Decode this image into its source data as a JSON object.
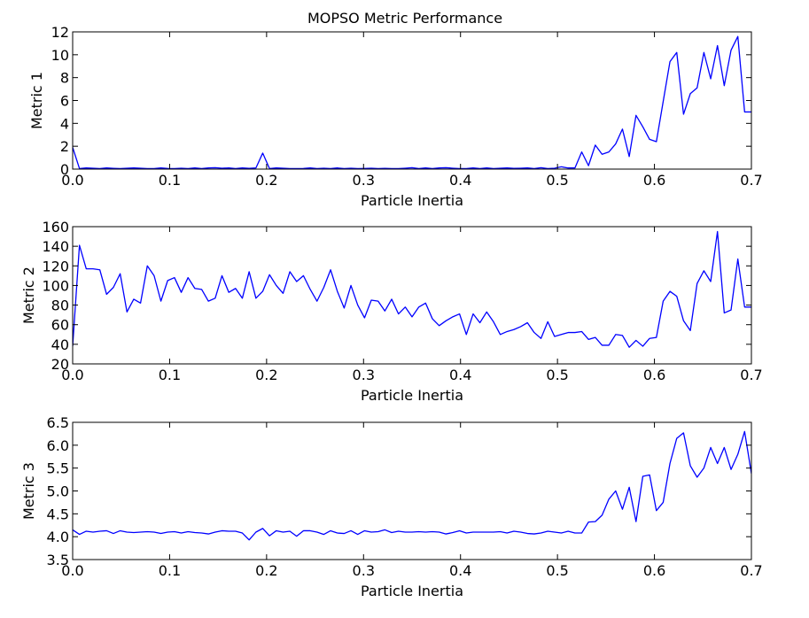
{
  "figure": {
    "title": "MOPSO Metric Performance"
  },
  "chart_data": [
    {
      "type": "line",
      "title": "MOPSO Metric Performance",
      "xlabel": "Particle Inertia",
      "ylabel": "Metric 1",
      "xlim": [
        0.0,
        0.7
      ],
      "ylim": [
        0,
        12
      ],
      "xticks": [
        "0.0",
        "0.1",
        "0.2",
        "0.3",
        "0.4",
        "0.5",
        "0.6",
        "0.7"
      ],
      "yticks": [
        "0",
        "2",
        "4",
        "6",
        "8",
        "10",
        "12"
      ],
      "grid": false,
      "line_color": "#0000ff",
      "x": [
        0.0,
        0.007,
        0.014,
        0.021,
        0.028,
        0.035,
        0.042,
        0.049,
        0.056,
        0.063,
        0.07,
        0.077,
        0.084,
        0.091,
        0.098,
        0.105,
        0.112,
        0.119,
        0.126,
        0.133,
        0.14,
        0.147,
        0.154,
        0.161,
        0.168,
        0.175,
        0.182,
        0.189,
        0.196,
        0.203,
        0.21,
        0.217,
        0.224,
        0.231,
        0.238,
        0.245,
        0.252,
        0.259,
        0.266,
        0.273,
        0.28,
        0.287,
        0.294,
        0.301,
        0.308,
        0.315,
        0.322,
        0.329,
        0.336,
        0.343,
        0.35,
        0.357,
        0.364,
        0.371,
        0.378,
        0.385,
        0.392,
        0.399,
        0.406,
        0.413,
        0.42,
        0.427,
        0.434,
        0.441,
        0.448,
        0.455,
        0.462,
        0.469,
        0.476,
        0.483,
        0.49,
        0.497,
        0.504,
        0.511,
        0.518,
        0.525,
        0.532,
        0.539,
        0.546,
        0.553,
        0.56,
        0.567,
        0.574,
        0.581,
        0.588,
        0.595,
        0.602,
        0.609,
        0.616,
        0.623,
        0.63,
        0.637,
        0.644,
        0.651,
        0.658,
        0.665,
        0.672,
        0.679,
        0.686,
        0.693,
        0.7
      ],
      "y": [
        1.9,
        0.05,
        0.1,
        0.08,
        0.05,
        0.1,
        0.07,
        0.05,
        0.08,
        0.1,
        0.08,
        0.05,
        0.05,
        0.1,
        0.06,
        0.05,
        0.08,
        0.05,
        0.1,
        0.05,
        0.1,
        0.12,
        0.08,
        0.1,
        0.05,
        0.1,
        0.07,
        0.1,
        1.4,
        0.05,
        0.1,
        0.08,
        0.05,
        0.05,
        0.06,
        0.1,
        0.05,
        0.08,
        0.05,
        0.1,
        0.05,
        0.08,
        0.05,
        0.06,
        0.08,
        0.05,
        0.07,
        0.05,
        0.05,
        0.08,
        0.12,
        0.05,
        0.1,
        0.05,
        0.1,
        0.12,
        0.08,
        0.05,
        0.05,
        0.1,
        0.05,
        0.1,
        0.05,
        0.08,
        0.1,
        0.07,
        0.08,
        0.1,
        0.05,
        0.12,
        0.05,
        0.08,
        0.2,
        0.1,
        0.1,
        1.5,
        0.3,
        2.1,
        1.3,
        1.5,
        2.2,
        3.5,
        1.1,
        4.7,
        3.7,
        2.6,
        2.4,
        5.9,
        9.4,
        10.2,
        4.8,
        6.6,
        7.1,
        10.2,
        7.9,
        10.8,
        7.3,
        10.4,
        11.6,
        5.0,
        5.0
      ]
    },
    {
      "type": "line",
      "xlabel": "Particle Inertia",
      "ylabel": "Metric 2",
      "xlim": [
        0.0,
        0.7
      ],
      "ylim": [
        20,
        160
      ],
      "xticks": [
        "0.0",
        "0.1",
        "0.2",
        "0.3",
        "0.4",
        "0.5",
        "0.6",
        "0.7"
      ],
      "yticks": [
        "20",
        "40",
        "60",
        "80",
        "100",
        "120",
        "140",
        "160"
      ],
      "grid": false,
      "line_color": "#0000ff",
      "x": [
        0.0,
        0.007,
        0.014,
        0.021,
        0.028,
        0.035,
        0.042,
        0.049,
        0.056,
        0.063,
        0.07,
        0.077,
        0.084,
        0.091,
        0.098,
        0.105,
        0.112,
        0.119,
        0.126,
        0.133,
        0.14,
        0.147,
        0.154,
        0.161,
        0.168,
        0.175,
        0.182,
        0.189,
        0.196,
        0.203,
        0.21,
        0.217,
        0.224,
        0.231,
        0.238,
        0.245,
        0.252,
        0.259,
        0.266,
        0.273,
        0.28,
        0.287,
        0.294,
        0.301,
        0.308,
        0.315,
        0.322,
        0.329,
        0.336,
        0.343,
        0.35,
        0.357,
        0.364,
        0.371,
        0.378,
        0.385,
        0.392,
        0.399,
        0.406,
        0.413,
        0.42,
        0.427,
        0.434,
        0.441,
        0.448,
        0.455,
        0.462,
        0.469,
        0.476,
        0.483,
        0.49,
        0.497,
        0.504,
        0.511,
        0.518,
        0.525,
        0.532,
        0.539,
        0.546,
        0.553,
        0.56,
        0.567,
        0.574,
        0.581,
        0.588,
        0.595,
        0.602,
        0.609,
        0.616,
        0.623,
        0.63,
        0.637,
        0.644,
        0.651,
        0.658,
        0.665,
        0.672,
        0.679,
        0.686,
        0.693,
        0.7
      ],
      "y": [
        38,
        141,
        117,
        117,
        116,
        91,
        98,
        112,
        73,
        86,
        82,
        120,
        110,
        84,
        105,
        108,
        93,
        108,
        97,
        96,
        84,
        87,
        110,
        93,
        97,
        87,
        114,
        87,
        94,
        111,
        100,
        92,
        114,
        104,
        110,
        96,
        84,
        98,
        116,
        94,
        77,
        100,
        80,
        67,
        85,
        84,
        74,
        86,
        71,
        78,
        68,
        78,
        82,
        66,
        59,
        64,
        68,
        71,
        50,
        71,
        62,
        73,
        63,
        50,
        53,
        55,
        58,
        62,
        52,
        46,
        63,
        48,
        50,
        52,
        52,
        53,
        45,
        47,
        39,
        39,
        50,
        49,
        37,
        44,
        38,
        46,
        47,
        84,
        94,
        89,
        64,
        54,
        102,
        115,
        104,
        155,
        72,
        75,
        127,
        78,
        78
      ]
    },
    {
      "type": "line",
      "xlabel": "Particle Inertia",
      "ylabel": "Metric 3",
      "xlim": [
        0.0,
        0.7
      ],
      "ylim": [
        3.5,
        6.5
      ],
      "xticks": [
        "0.0",
        "0.1",
        "0.2",
        "0.3",
        "0.4",
        "0.5",
        "0.6",
        "0.7"
      ],
      "yticks": [
        "3.5",
        "4.0",
        "4.5",
        "5.0",
        "5.5",
        "6.0",
        "6.5"
      ],
      "grid": false,
      "line_color": "#0000ff",
      "x": [
        0.0,
        0.007,
        0.014,
        0.021,
        0.028,
        0.035,
        0.042,
        0.049,
        0.056,
        0.063,
        0.07,
        0.077,
        0.084,
        0.091,
        0.098,
        0.105,
        0.112,
        0.119,
        0.126,
        0.133,
        0.14,
        0.147,
        0.154,
        0.161,
        0.168,
        0.175,
        0.182,
        0.189,
        0.196,
        0.203,
        0.21,
        0.217,
        0.224,
        0.231,
        0.238,
        0.245,
        0.252,
        0.259,
        0.266,
        0.273,
        0.28,
        0.287,
        0.294,
        0.301,
        0.308,
        0.315,
        0.322,
        0.329,
        0.336,
        0.343,
        0.35,
        0.357,
        0.364,
        0.371,
        0.378,
        0.385,
        0.392,
        0.399,
        0.406,
        0.413,
        0.42,
        0.427,
        0.434,
        0.441,
        0.448,
        0.455,
        0.462,
        0.469,
        0.476,
        0.483,
        0.49,
        0.497,
        0.504,
        0.511,
        0.518,
        0.525,
        0.532,
        0.539,
        0.546,
        0.553,
        0.56,
        0.567,
        0.574,
        0.581,
        0.588,
        0.595,
        0.602,
        0.609,
        0.616,
        0.623,
        0.63,
        0.637,
        0.644,
        0.651,
        0.658,
        0.665,
        0.672,
        0.679,
        0.686,
        0.693,
        0.7
      ],
      "y": [
        4.15,
        4.05,
        4.12,
        4.1,
        4.12,
        4.13,
        4.07,
        4.13,
        4.1,
        4.09,
        4.1,
        4.11,
        4.1,
        4.07,
        4.1,
        4.11,
        4.08,
        4.11,
        4.09,
        4.08,
        4.06,
        4.1,
        4.13,
        4.12,
        4.12,
        4.08,
        3.93,
        4.1,
        4.18,
        4.02,
        4.13,
        4.1,
        4.12,
        4.01,
        4.13,
        4.13,
        4.1,
        4.05,
        4.13,
        4.08,
        4.07,
        4.13,
        4.05,
        4.13,
        4.1,
        4.11,
        4.15,
        4.09,
        4.12,
        4.1,
        4.1,
        4.11,
        4.1,
        4.11,
        4.1,
        4.06,
        4.09,
        4.13,
        4.08,
        4.1,
        4.1,
        4.1,
        4.1,
        4.11,
        4.08,
        4.12,
        4.1,
        4.07,
        4.06,
        4.08,
        4.12,
        4.1,
        4.08,
        4.12,
        4.08,
        4.08,
        4.32,
        4.33,
        4.47,
        4.82,
        5.0,
        4.6,
        5.08,
        4.33,
        5.32,
        5.35,
        4.57,
        4.75,
        5.6,
        6.15,
        6.27,
        5.55,
        5.3,
        5.5,
        5.95,
        5.6,
        5.95,
        5.47,
        5.8,
        6.3,
        5.38
      ]
    }
  ]
}
